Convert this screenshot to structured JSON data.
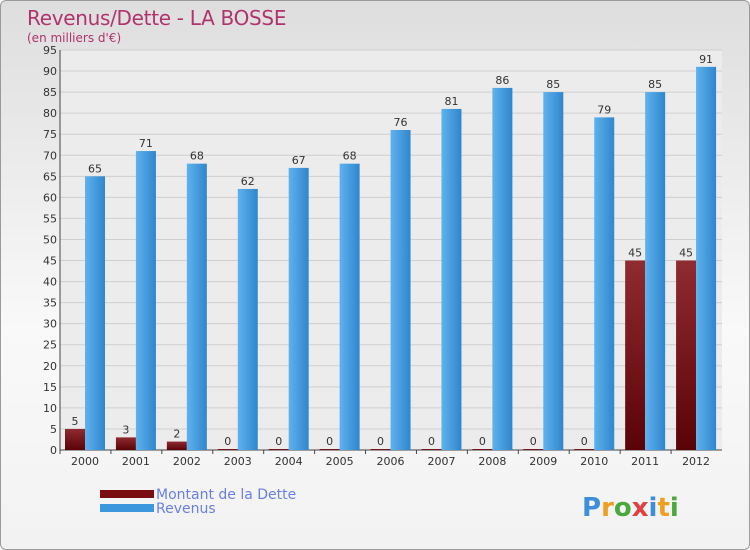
{
  "chart_data": {
    "type": "bar",
    "title": "Revenus/Dette - LA BOSSE",
    "subtitle": "(en milliers d'€)",
    "categories": [
      "2000",
      "2001",
      "2002",
      "2003",
      "2004",
      "2005",
      "2006",
      "2007",
      "2008",
      "2009",
      "2010",
      "2011",
      "2012"
    ],
    "series": [
      {
        "name": "Montant de la Dette",
        "color": "#7a0d12",
        "values": [
          5,
          3,
          2,
          0,
          0,
          0,
          0,
          0,
          0,
          0,
          0,
          45,
          45
        ]
      },
      {
        "name": "Revenus",
        "color": "#3c97dc",
        "values": [
          65,
          71,
          68,
          62,
          67,
          68,
          76,
          81,
          86,
          85,
          79,
          85,
          91
        ]
      }
    ],
    "ylim": [
      0,
      95
    ],
    "yticks": [
      0,
      5,
      10,
      15,
      20,
      25,
      30,
      35,
      40,
      45,
      50,
      55,
      60,
      65,
      70,
      75,
      80,
      85,
      90,
      95
    ],
    "grid": true,
    "legend": "bottom-left"
  },
  "brand": {
    "text": "Proxiti",
    "letter_colors": [
      "#3c8fd8",
      "#f0a020",
      "#4aa83c",
      "#e04040",
      "#3c8fd8",
      "#f0a020",
      "#4aa83c"
    ]
  }
}
